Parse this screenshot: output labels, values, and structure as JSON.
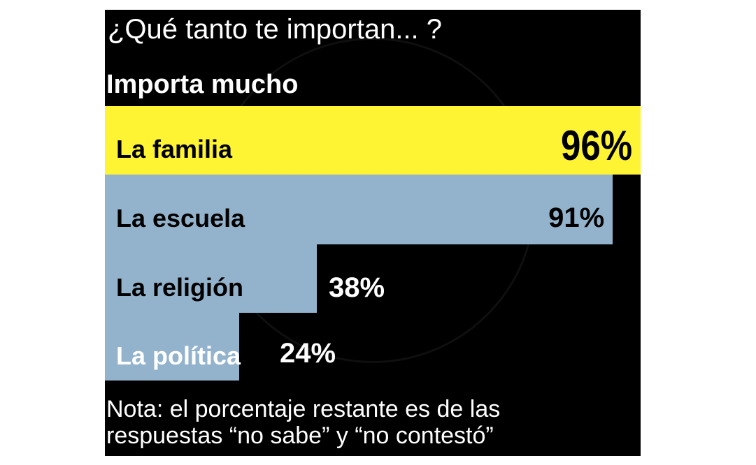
{
  "chart_data": {
    "type": "bar",
    "orientation": "horizontal",
    "title": "¿Qué tanto te importan... ?",
    "subtitle": "Importa mucho",
    "categories": [
      "La familia",
      "La escuela",
      "La religión",
      "La política"
    ],
    "values": [
      96,
      91,
      38,
      24
    ],
    "value_labels": [
      "96%",
      "91%",
      "38%",
      "24%"
    ],
    "xlim": [
      0,
      100
    ],
    "grid": false,
    "colors": {
      "highlight": "#fff433",
      "bar": "#93b3cd",
      "background": "#000000"
    },
    "bar_colors": [
      "#fff433",
      "#93b3cd",
      "#93b3cd",
      "#93b3cd"
    ],
    "note": [
      "Nota: el porcentaje restante es de  las",
      "respuestas “no sabe” y  “no contestó”"
    ]
  }
}
